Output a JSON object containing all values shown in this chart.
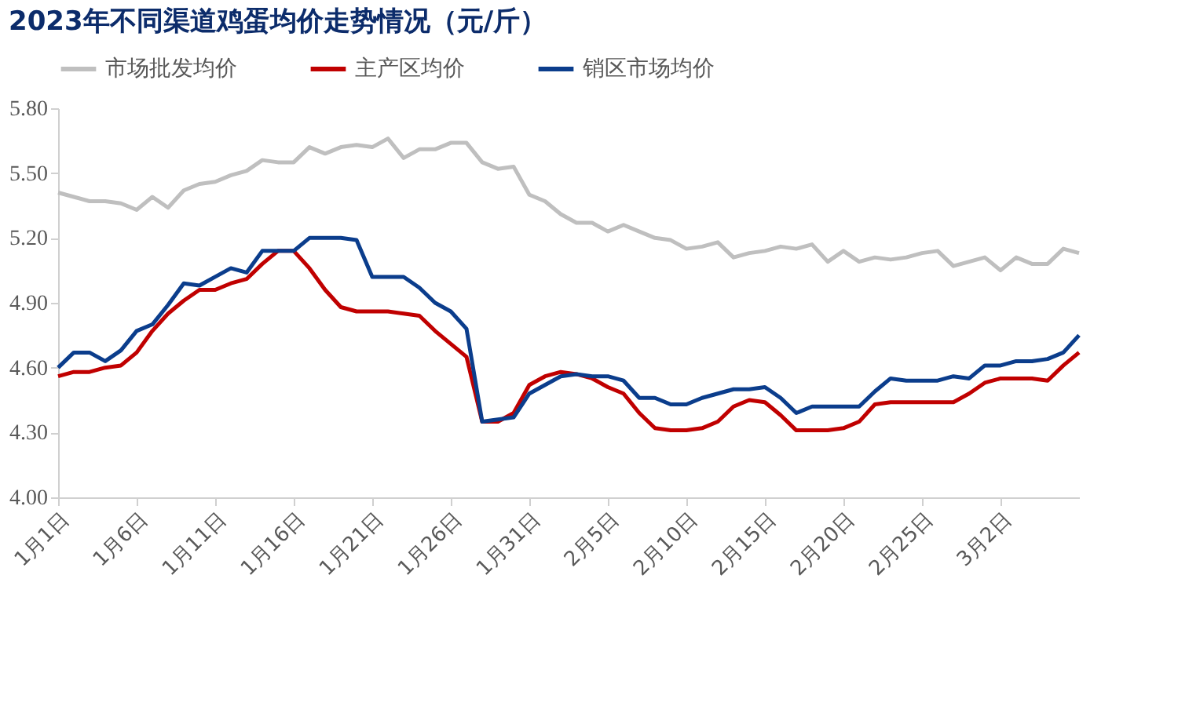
{
  "chart_data": {
    "type": "line",
    "title": "2023年不同渠道鸡蛋均价走势情况（元/斤）",
    "x": [
      "2023-01-01",
      "2023-01-02",
      "2023-01-03",
      "2023-01-04",
      "2023-01-05",
      "2023-01-06",
      "2023-01-07",
      "2023-01-08",
      "2023-01-09",
      "2023-01-10",
      "2023-01-11",
      "2023-01-12",
      "2023-01-13",
      "2023-01-14",
      "2023-01-15",
      "2023-01-16",
      "2023-01-17",
      "2023-01-18",
      "2023-01-19",
      "2023-01-20",
      "2023-01-21",
      "2023-01-22",
      "2023-01-23",
      "2023-01-24",
      "2023-01-25",
      "2023-01-26",
      "2023-01-27",
      "2023-01-28",
      "2023-01-29",
      "2023-01-30",
      "2023-01-31",
      "2023-02-01",
      "2023-02-02",
      "2023-02-03",
      "2023-02-04",
      "2023-02-05",
      "2023-02-06",
      "2023-02-07",
      "2023-02-08",
      "2023-02-09",
      "2023-02-10",
      "2023-02-11",
      "2023-02-12",
      "2023-02-13",
      "2023-02-14",
      "2023-02-15",
      "2023-02-16",
      "2023-02-17",
      "2023-02-18",
      "2023-02-19",
      "2023-02-20",
      "2023-02-21",
      "2023-02-22",
      "2023-02-23",
      "2023-02-24",
      "2023-02-25",
      "2023-02-26",
      "2023-02-27",
      "2023-02-28",
      "2023-03-01",
      "2023-03-02",
      "2023-03-03",
      "2023-03-04",
      "2023-03-05",
      "2023-03-06",
      "2023-03-07"
    ],
    "series": [
      {
        "name": "市场批发均价",
        "color": "#bfbfbf",
        "values": [
          5.41,
          5.39,
          5.37,
          5.37,
          5.36,
          5.33,
          5.39,
          5.34,
          5.42,
          5.45,
          5.46,
          5.49,
          5.51,
          5.56,
          5.55,
          5.55,
          5.62,
          5.59,
          5.62,
          5.63,
          5.62,
          5.66,
          5.57,
          5.61,
          5.61,
          5.64,
          5.64,
          5.55,
          5.52,
          5.53,
          5.4,
          5.37,
          5.31,
          5.27,
          5.27,
          5.23,
          5.26,
          5.23,
          5.2,
          5.19,
          5.15,
          5.16,
          5.18,
          5.11,
          5.13,
          5.14,
          5.16,
          5.15,
          5.17,
          5.09,
          5.14,
          5.09,
          5.11,
          5.1,
          5.11,
          5.13,
          5.14,
          5.07,
          5.09,
          5.11,
          5.05,
          5.11,
          5.08,
          5.08,
          5.15,
          5.13
        ]
      },
      {
        "name": "主产区均价",
        "color": "#c00000",
        "values": [
          4.56,
          4.58,
          4.58,
          4.6,
          4.61,
          4.67,
          4.77,
          4.85,
          4.91,
          4.96,
          4.96,
          4.99,
          5.01,
          5.08,
          5.14,
          5.14,
          5.06,
          4.96,
          4.88,
          4.86,
          4.86,
          4.86,
          4.85,
          4.84,
          4.77,
          4.71,
          4.65,
          4.35,
          4.35,
          4.39,
          4.52,
          4.56,
          4.58,
          4.57,
          4.55,
          4.51,
          4.48,
          4.39,
          4.32,
          4.31,
          4.31,
          4.32,
          4.35,
          4.42,
          4.45,
          4.44,
          4.38,
          4.31,
          4.31,
          4.31,
          4.32,
          4.35,
          4.43,
          4.44,
          4.44,
          4.44,
          4.44,
          4.44,
          4.48,
          4.53,
          4.55,
          4.55,
          4.55,
          4.54,
          4.61,
          4.67
        ]
      },
      {
        "name": "销区市场均价",
        "color": "#0b3d8c",
        "values": [
          4.6,
          4.67,
          4.67,
          4.63,
          4.68,
          4.77,
          4.8,
          4.89,
          4.99,
          4.98,
          5.02,
          5.06,
          5.04,
          5.14,
          5.14,
          5.14,
          5.2,
          5.2,
          5.2,
          5.19,
          5.02,
          5.02,
          5.02,
          4.97,
          4.9,
          4.86,
          4.78,
          4.35,
          4.36,
          4.37,
          4.48,
          4.52,
          4.56,
          4.57,
          4.56,
          4.56,
          4.54,
          4.46,
          4.46,
          4.43,
          4.43,
          4.46,
          4.48,
          4.5,
          4.5,
          4.51,
          4.46,
          4.39,
          4.42,
          4.42,
          4.42,
          4.42,
          4.49,
          4.55,
          4.54,
          4.54,
          4.54,
          4.56,
          4.55,
          4.61,
          4.61,
          4.63,
          4.63,
          4.64,
          4.67,
          4.75
        ]
      }
    ],
    "xlim": [
      "2023-01-01",
      "2023-03-07"
    ],
    "xticks": [
      {
        "value": "2023-01-01",
        "label": "1月1日"
      },
      {
        "value": "2023-01-06",
        "label": "1月6日"
      },
      {
        "value": "2023-01-11",
        "label": "1月11日"
      },
      {
        "value": "2023-01-16",
        "label": "1月16日"
      },
      {
        "value": "2023-01-21",
        "label": "1月21日"
      },
      {
        "value": "2023-01-26",
        "label": "1月26日"
      },
      {
        "value": "2023-01-31",
        "label": "1月31日"
      },
      {
        "value": "2023-02-05",
        "label": "2月5日"
      },
      {
        "value": "2023-02-10",
        "label": "2月10日"
      },
      {
        "value": "2023-02-15",
        "label": "2月15日"
      },
      {
        "value": "2023-02-20",
        "label": "2月20日"
      },
      {
        "value": "2023-02-25",
        "label": "2月25日"
      },
      {
        "value": "2023-03-02",
        "label": "3月2日"
      }
    ],
    "ylim": [
      4.0,
      5.8
    ],
    "yticks": [
      {
        "value": 4.0,
        "label": "4.00"
      },
      {
        "value": 4.3,
        "label": "4.30"
      },
      {
        "value": 4.6,
        "label": "4.60"
      },
      {
        "value": 4.9,
        "label": "4.90"
      },
      {
        "value": 5.2,
        "label": "5.20"
      },
      {
        "value": 5.5,
        "label": "5.50"
      },
      {
        "value": 5.8,
        "label": "5.80"
      }
    ],
    "grid": false,
    "legend": "top",
    "marker": "none",
    "line_style": "solid"
  }
}
